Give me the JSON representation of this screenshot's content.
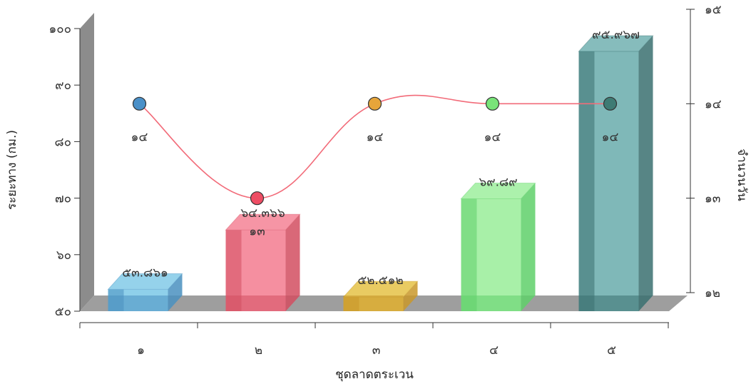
{
  "chart_data": {
    "type": "bar",
    "categories": [
      "๑",
      "๒",
      "๓",
      "๔",
      "๕"
    ],
    "xlabel": "ชุดลาดตระเวน",
    "y_left": {
      "label": "ระยะทาง (กม.)",
      "ylim": [
        50,
        100
      ],
      "ticks": [
        50,
        60,
        70,
        80,
        90,
        100
      ],
      "tick_labels": [
        "๕๐",
        "๖๐",
        "๗๐",
        "๘๐",
        "๙๐",
        "๑๐๐"
      ]
    },
    "y_right": {
      "label": "จำนวนวัน",
      "ylim": [
        12,
        15
      ],
      "ticks": [
        12,
        13,
        14,
        15
      ],
      "tick_labels": [
        "๑๒",
        "๑๓",
        "๑๔",
        "๑๕"
      ]
    },
    "series": [
      {
        "kind": "bar3d",
        "axis": "left",
        "values": [
          53.861,
          64.366,
          52.512,
          69.89,
          95.967
        ],
        "labels": [
          "๕๓.๘๖๑",
          "๖๔.๓๖๖",
          "๕๒.๕๑๒",
          "๖๙.๘๙",
          "๙๕.๙๖๗"
        ]
      },
      {
        "kind": "spline",
        "axis": "right",
        "values": [
          14,
          13,
          14,
          14,
          14
        ],
        "labels": [
          "๑๔",
          "๑๓",
          "๑๔",
          "๑๔",
          "๑๔"
        ]
      }
    ],
    "colors": {
      "bar_fronts": [
        "#8fd0ea",
        "#f58fa0",
        "#e8c85a",
        "#a8f0a8",
        "#7fb8b8"
      ],
      "bar_dark": [
        "#4a90c0",
        "#d24e60",
        "#c9982a",
        "#5fd06a",
        "#3a7070"
      ],
      "markers": [
        "#4a90c8",
        "#ee4d64",
        "#e6a53a",
        "#79e479",
        "#3e7b74"
      ],
      "line": "#f26b79",
      "floor": "#9e9e9e",
      "wall": "#8c8c8c"
    },
    "grid": false,
    "legend": "none"
  }
}
